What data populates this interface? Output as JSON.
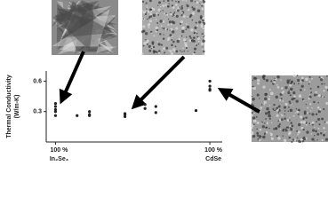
{
  "chart_data": {
    "type": "scatter",
    "ylabel": "Thermal Conductivity",
    "ylabel_units": "(W/m-K)",
    "x": [
      0,
      0,
      0,
      0,
      0,
      0.14,
      0.22,
      0.22,
      0.22,
      0.45,
      0.45,
      0.45,
      0.58,
      0.58,
      0.65,
      0.65,
      0.91,
      1,
      1,
      1,
      1
    ],
    "y": [
      0.38,
      0.35,
      0.32,
      0.3,
      0.26,
      0.26,
      0.3,
      0.27,
      0.26,
      0.28,
      0.27,
      0.25,
      0.37,
      0.33,
      0.35,
      0.29,
      0.31,
      0.6,
      0.55,
      0.52,
      0.51
    ],
    "color": "#222222",
    "xlim": [
      -0.06,
      1.08
    ],
    "ylim": [
      0,
      0.7
    ],
    "yticks": [
      0.3,
      0.6
    ],
    "xticks": [
      {
        "value": 0,
        "label": "100 %"
      },
      {
        "value": 1,
        "label": "100 %"
      }
    ],
    "xtick_sublabels": [
      "In₂Se₃",
      "CdSe"
    ]
  }
}
